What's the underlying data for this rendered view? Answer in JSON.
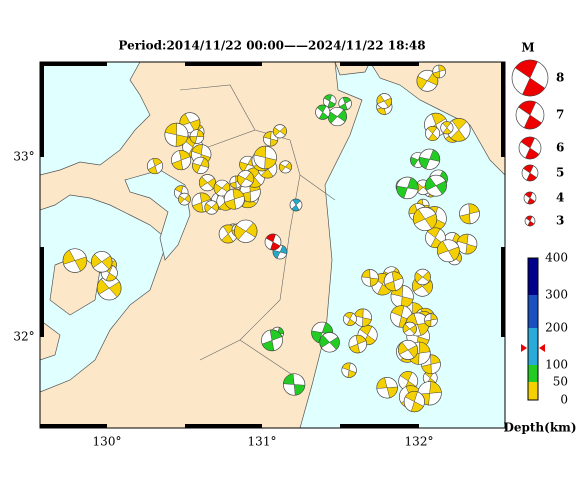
{
  "title": "Period:2014/11/22 00:00——2024/11/22 18:48",
  "longitude_labels": [
    "130°",
    "131°",
    "132°"
  ],
  "latitude_labels": [
    "33°",
    "32°"
  ],
  "magnitude_legend": {
    "title": "M",
    "labels": [
      "8",
      "7",
      "6",
      "5",
      "4",
      "3"
    ]
  },
  "depth_scale": {
    "title": "Depth(km)",
    "labels": [
      "400",
      "300",
      "200",
      "100",
      "50",
      "0"
    ]
  }
}
